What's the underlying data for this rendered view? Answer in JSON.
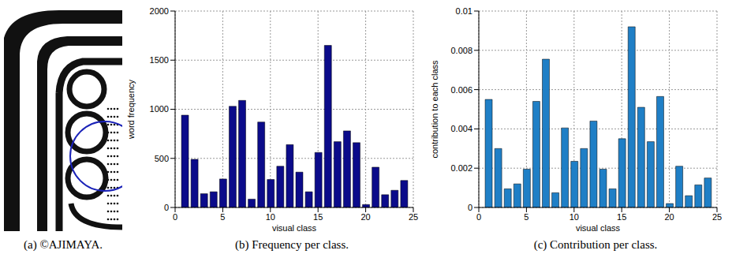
{
  "chart_data": [
    {
      "type": "image",
      "title": "(a) ©AJIMAYA."
    },
    {
      "type": "bar",
      "title": "(b) Frequency per class.",
      "x_label": "visual class",
      "y_label": "word frequency",
      "x": [
        1,
        2,
        3,
        4,
        5,
        6,
        7,
        8,
        9,
        10,
        11,
        12,
        13,
        14,
        15,
        16,
        17,
        18,
        19,
        20,
        21,
        22,
        23,
        24
      ],
      "values": [
        940,
        490,
        140,
        160,
        290,
        1030,
        1090,
        85,
        870,
        285,
        420,
        640,
        360,
        160,
        560,
        1650,
        670,
        780,
        660,
        30,
        410,
        130,
        175,
        275
      ],
      "color": "#0b0b8a",
      "xlim": [
        0,
        25
      ],
      "xticks": [
        0,
        5,
        10,
        15,
        20,
        25
      ],
      "ylim": [
        0,
        2000
      ],
      "yticks": [
        0,
        500,
        1000,
        1500,
        2000
      ],
      "grid": true
    },
    {
      "type": "bar",
      "title": "(c) Contribution per class.",
      "x_label": "visual class",
      "y_label": "contribution to each class",
      "x": [
        1,
        2,
        3,
        4,
        5,
        6,
        7,
        8,
        9,
        10,
        11,
        12,
        13,
        14,
        15,
        16,
        17,
        18,
        19,
        20,
        21,
        22,
        23,
        24
      ],
      "values": [
        0.0055,
        0.003,
        0.00095,
        0.0012,
        0.00195,
        0.0054,
        0.00755,
        0.00075,
        0.00405,
        0.00235,
        0.003,
        0.0044,
        0.00195,
        0.00095,
        0.0035,
        0.0092,
        0.0051,
        0.00335,
        0.00565,
        0.0002,
        0.0021,
        0.0006,
        0.00115,
        0.0015
      ],
      "color": "#1f7fc6",
      "xlim": [
        0,
        25
      ],
      "xticks": [
        0,
        5,
        10,
        15,
        20,
        25
      ],
      "ylim": [
        0,
        0.01
      ],
      "yticks": [
        0,
        0.002,
        0.004,
        0.006,
        0.008,
        0.01
      ],
      "grid": true
    }
  ]
}
